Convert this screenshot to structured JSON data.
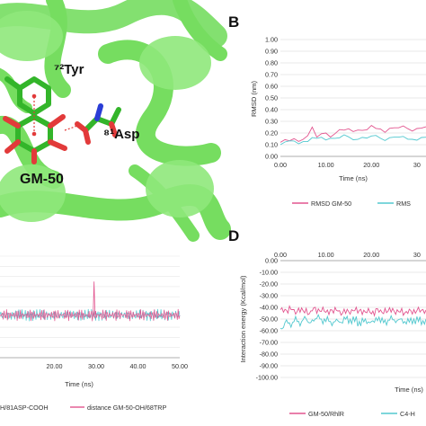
{
  "panels": {
    "A": {
      "labels": {
        "tyr": "⁷²Tyr",
        "asp": "⁸¹Asp",
        "gm": "GM-50"
      }
    },
    "B": {
      "letter": "B"
    },
    "D": {
      "letter": "D"
    }
  },
  "colors": {
    "pink": "#e2558f",
    "cyan": "#52c8cf",
    "protein": "#7ee36a",
    "stick": "#3fbf2e"
  },
  "chart_data": [
    {
      "id": "B",
      "type": "line",
      "xlabel": "Time (ns)",
      "ylabel": "RMSD (nm)",
      "xticks": [
        "0.00",
        "10.00",
        "20.00",
        "30"
      ],
      "ylim": [
        0,
        1.0
      ],
      "yticks": [
        "0.00",
        "0.10",
        "0.20",
        "0.30",
        "0.40",
        "0.50",
        "0.60",
        "0.70",
        "0.80",
        "0.90",
        "1.00"
      ],
      "legend": [
        "RMSD GM-50",
        "RMS"
      ],
      "series": [
        {
          "name": "RMSD GM-50",
          "color": "pink",
          "x": [
            0,
            1,
            2,
            3,
            4,
            5,
            6,
            7,
            8,
            9,
            10,
            11,
            12,
            13,
            14,
            15,
            16,
            17,
            18,
            19,
            20,
            21,
            22,
            23,
            24,
            25,
            26,
            27,
            28,
            29,
            30,
            31,
            32
          ],
          "y": [
            0.12,
            0.13,
            0.12,
            0.15,
            0.14,
            0.16,
            0.18,
            0.24,
            0.15,
            0.19,
            0.21,
            0.18,
            0.2,
            0.22,
            0.21,
            0.23,
            0.22,
            0.24,
            0.23,
            0.22,
            0.25,
            0.23,
            0.24,
            0.22,
            0.25,
            0.24,
            0.23,
            0.25,
            0.24,
            0.23,
            0.25,
            0.24,
            0.24
          ]
        },
        {
          "name": "RMS",
          "color": "cyan",
          "x": [
            0,
            1,
            2,
            3,
            4,
            5,
            6,
            7,
            8,
            9,
            10,
            11,
            12,
            13,
            14,
            15,
            16,
            17,
            18,
            19,
            20,
            21,
            22,
            23,
            24,
            25,
            26,
            27,
            28,
            29,
            30,
            31,
            32
          ],
          "y": [
            0.1,
            0.11,
            0.12,
            0.13,
            0.12,
            0.14,
            0.13,
            0.15,
            0.14,
            0.16,
            0.15,
            0.17,
            0.16,
            0.15,
            0.17,
            0.16,
            0.15,
            0.16,
            0.17,
            0.15,
            0.16,
            0.17,
            0.16,
            0.15,
            0.17,
            0.16,
            0.15,
            0.16,
            0.15,
            0.16,
            0.15,
            0.16,
            0.15
          ]
        }
      ]
    },
    {
      "id": "C",
      "type": "line",
      "xlabel": "Time (ns)",
      "xticks": [
        "20.00",
        "30.00",
        "40.00",
        "50.00"
      ],
      "legend": [
        "H/81ASP-COOH",
        "distance GM-50-OH/68TRP"
      ],
      "series": [
        {
          "name": "H/81ASP-COOH",
          "color": "cyan",
          "x_start": 7.0,
          "x_end": 50.0,
          "y_level": 0.42,
          "amp": 0.06
        },
        {
          "name": "distance GM-50-OH/68TRP",
          "color": "pink",
          "x_start": 7.0,
          "x_end": 50.0,
          "y_level": 0.42,
          "amp": 0.06,
          "spike_x": 29.5,
          "spike_y": 1.0
        }
      ]
    },
    {
      "id": "D",
      "type": "line",
      "xlabel": "Time (ns)",
      "ylabel": "Interaction energy (Kcal/mol)",
      "xticks": [
        "0.00",
        "10.00",
        "20.00",
        "30"
      ],
      "ylim": [
        -100,
        0
      ],
      "yticks": [
        "0.00",
        "-10.00",
        "-20.00",
        "-30.00",
        "-40.00",
        "-50.00",
        "-60.00",
        "-70.00",
        "-80.00",
        "-90.00",
        "-100.00"
      ],
      "legend": [
        "GM-50/RhlR",
        "C4-H"
      ],
      "series": [
        {
          "name": "GM-50/RhlR",
          "color": "pink",
          "x": [
            0,
            1,
            2,
            3,
            4,
            5,
            6,
            7,
            8,
            9,
            10,
            11,
            12,
            13,
            14,
            15,
            16,
            17,
            18,
            19,
            20,
            21,
            22,
            23,
            24,
            25,
            26,
            27,
            28,
            29,
            30,
            31,
            32
          ],
          "y": [
            -42,
            -43,
            -41,
            -44,
            -42,
            -43,
            -45,
            -41,
            -43,
            -42,
            -44,
            -43,
            -42,
            -45,
            -43,
            -44,
            -42,
            -43,
            -44,
            -43,
            -45,
            -42,
            -44,
            -43,
            -42,
            -44,
            -43,
            -45,
            -43,
            -44,
            -42,
            -43,
            -44
          ]
        },
        {
          "name": "C4-H",
          "color": "cyan",
          "x": [
            0,
            1,
            2,
            3,
            4,
            5,
            6,
            7,
            8,
            9,
            10,
            11,
            12,
            13,
            14,
            15,
            16,
            17,
            18,
            19,
            20,
            21,
            22,
            23,
            24,
            25,
            26,
            27,
            28,
            29,
            30,
            31,
            32
          ],
          "y": [
            -58,
            -52,
            -55,
            -50,
            -54,
            -49,
            -53,
            -51,
            -48,
            -52,
            -50,
            -54,
            -51,
            -53,
            -49,
            -52,
            -50,
            -54,
            -51,
            -53,
            -52,
            -50,
            -51,
            -53,
            -49,
            -52,
            -50,
            -53,
            -51,
            -52,
            -50,
            -53,
            -51
          ]
        }
      ]
    }
  ]
}
